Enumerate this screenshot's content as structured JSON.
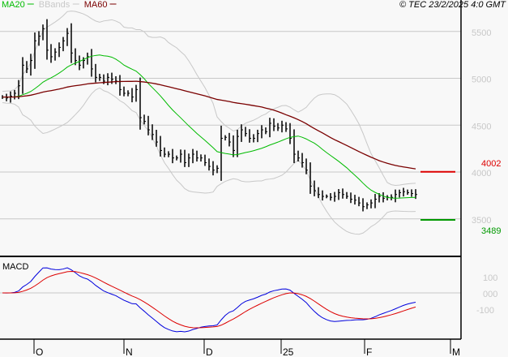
{
  "header": {
    "legend": [
      {
        "label": "MA20",
        "color": "#00bb00"
      },
      {
        "label": "BBands",
        "color": "#c8c8c8"
      },
      {
        "label": "MA60",
        "color": "#7a0000"
      }
    ],
    "copyright": "© TEC 23/2/2025 4:0 GMT"
  },
  "chart_data": [
    {
      "type": "ohlc",
      "ylim": [
        3250,
        5800
      ],
      "y_ticks": [
        "5500",
        "5000",
        "4500",
        "4000",
        "3500"
      ],
      "y_tick_values": [
        5500,
        5000,
        4500,
        4000,
        3500
      ],
      "x_ticks": [
        "O",
        "N",
        "D",
        "25",
        "F",
        "M"
      ],
      "closes": [
        4800,
        4790,
        4810,
        4840,
        4920,
        5140,
        5100,
        5190,
        5400,
        5450,
        5530,
        5300,
        5230,
        5280,
        5330,
        5400,
        5480,
        5270,
        5190,
        5140,
        5190,
        5230,
        5100,
        5010,
        5010,
        4970,
        5010,
        4990,
        4970,
        4880,
        4840,
        4840,
        4800,
        4880,
        4580,
        4540,
        4450,
        4400,
        4320,
        4230,
        4190,
        4190,
        4150,
        4150,
        4190,
        4100,
        4150,
        4190,
        4150,
        4150,
        4100,
        4060,
        4020,
        4040,
        4360,
        4370,
        4320,
        4230,
        4380,
        4450,
        4410,
        4360,
        4360,
        4410,
        4450,
        4430,
        4520,
        4490,
        4470,
        4500,
        4460,
        4360,
        4190,
        4150,
        4100,
        4020,
        3850,
        3800,
        3760,
        3740,
        3740,
        3730,
        3740,
        3780,
        3760,
        3740,
        3710,
        3700,
        3670,
        3630,
        3650,
        3670,
        3710,
        3740,
        3720,
        3730,
        3730,
        3760,
        3780,
        3790,
        3780,
        3770,
        3760
      ],
      "overlays": [
        "MA20",
        "BBands",
        "MA60"
      ],
      "levels": [
        {
          "label": "4002",
          "value": 4002,
          "color": "#dd0000"
        },
        {
          "label": "3489",
          "value": 3489,
          "color": "#009900"
        }
      ]
    },
    {
      "type": "line",
      "title": "MACD",
      "y_ticks": [
        "100",
        "000",
        "-100"
      ],
      "y_tick_values": [
        100,
        0,
        -100
      ],
      "series": [
        {
          "color": "#0000dd"
        },
        {
          "color": "#dd0000"
        }
      ]
    }
  ]
}
